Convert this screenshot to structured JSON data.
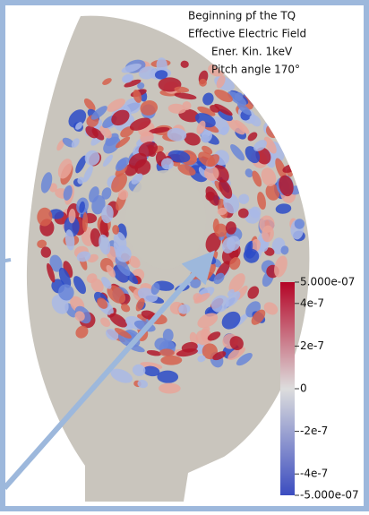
{
  "annotation": {
    "lines": [
      "Beginning pf the TQ",
      "Effective Electric Field",
      "Ener. Kin. 1keV",
      "Pitch angle 170°"
    ]
  },
  "colorbar": {
    "range": [
      -5e-07,
      5e-07
    ],
    "colors": [
      "#3b4cc0",
      "#dddddd",
      "#b40426"
    ],
    "ticks": [
      {
        "value": 5e-07,
        "label": "5.000e-07"
      },
      {
        "value": 4e-07,
        "label": "4e-7"
      },
      {
        "value": 2e-07,
        "label": "2e-7"
      },
      0,
      {
        "value": -2e-07,
        "label": "-2e-7"
      },
      {
        "value": -4e-07,
        "label": "-4e-7"
      },
      {
        "value": -5e-07,
        "label": "-5.000e-07"
      }
    ]
  }
}
